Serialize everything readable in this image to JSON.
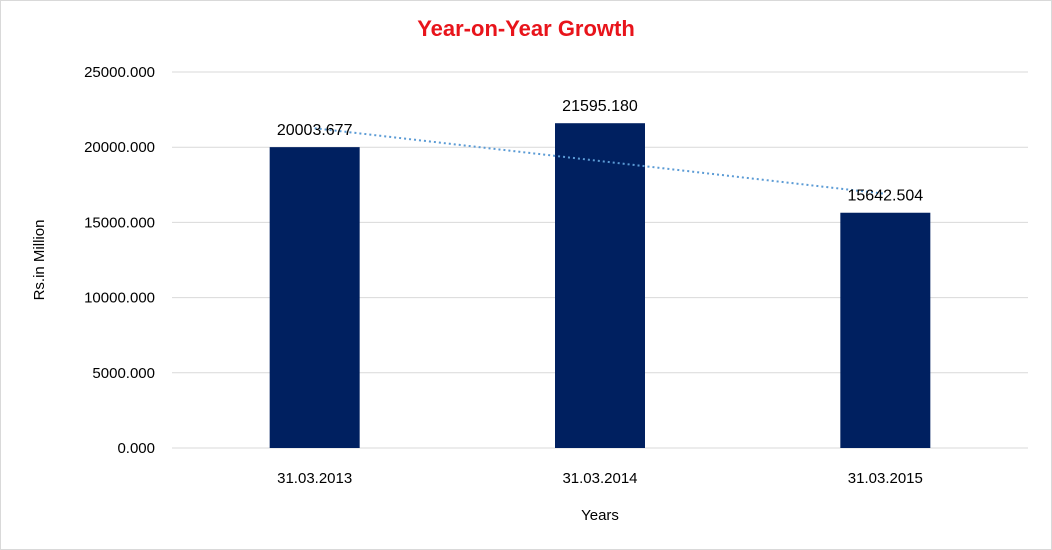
{
  "chart_data": {
    "type": "bar",
    "title": "Year-on-Year Growth",
    "xlabel": "Years",
    "ylabel": "Rs.in Million",
    "categories": [
      "31.03.2013",
      "31.03.2014",
      "31.03.2015"
    ],
    "values": [
      20003.677,
      21595.18,
      15642.504
    ],
    "data_labels": [
      "20003.677",
      "21595.180",
      "15642.504"
    ],
    "ylim": [
      0,
      25000
    ],
    "y_ticks": [
      {
        "value": 0,
        "label": "0.000"
      },
      {
        "value": 5000,
        "label": "5000.000"
      },
      {
        "value": 10000,
        "label": "10000.000"
      },
      {
        "value": 15000,
        "label": "15000.000"
      },
      {
        "value": 20000,
        "label": "20000.000"
      },
      {
        "value": 25000,
        "label": "25000.000"
      }
    ],
    "trendline": {
      "type": "linear",
      "style": "dotted"
    },
    "grid": true,
    "legend": "none",
    "colors": {
      "bar": "#002060",
      "title": "#e8141b",
      "trendline": "#5b9bd5",
      "gridline": "#d9d9d9"
    }
  }
}
